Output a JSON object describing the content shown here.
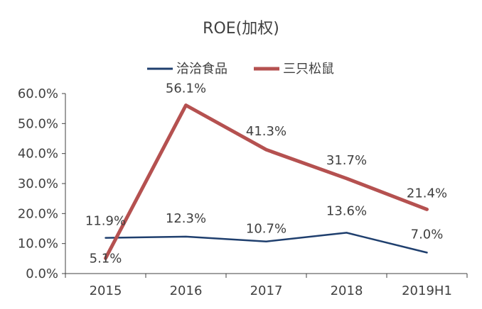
{
  "chart_data": {
    "type": "line",
    "title": "ROE(加权)",
    "categories": [
      "2015",
      "2016",
      "2017",
      "2018",
      "2019H1"
    ],
    "ylim": [
      0,
      60
    ],
    "yticks": [
      "0.0%",
      "10.0%",
      "20.0%",
      "30.0%",
      "40.0%",
      "50.0%",
      "60.0%"
    ],
    "legend_position": "top-center",
    "grid": false,
    "series": [
      {
        "name": "洽洽食品",
        "color": "#1f3f6e",
        "values": [
          11.9,
          12.3,
          10.7,
          13.6,
          7.0
        ],
        "labels": [
          "11.9%",
          "12.3%",
          "10.7%",
          "13.6%",
          "7.0%"
        ]
      },
      {
        "name": "三只松鼠",
        "color": "#b55150",
        "values": [
          5.1,
          56.1,
          41.3,
          31.7,
          21.4
        ],
        "labels": [
          "5.1%",
          "56.1%",
          "41.3%",
          "31.7%",
          "21.4%"
        ]
      }
    ]
  }
}
